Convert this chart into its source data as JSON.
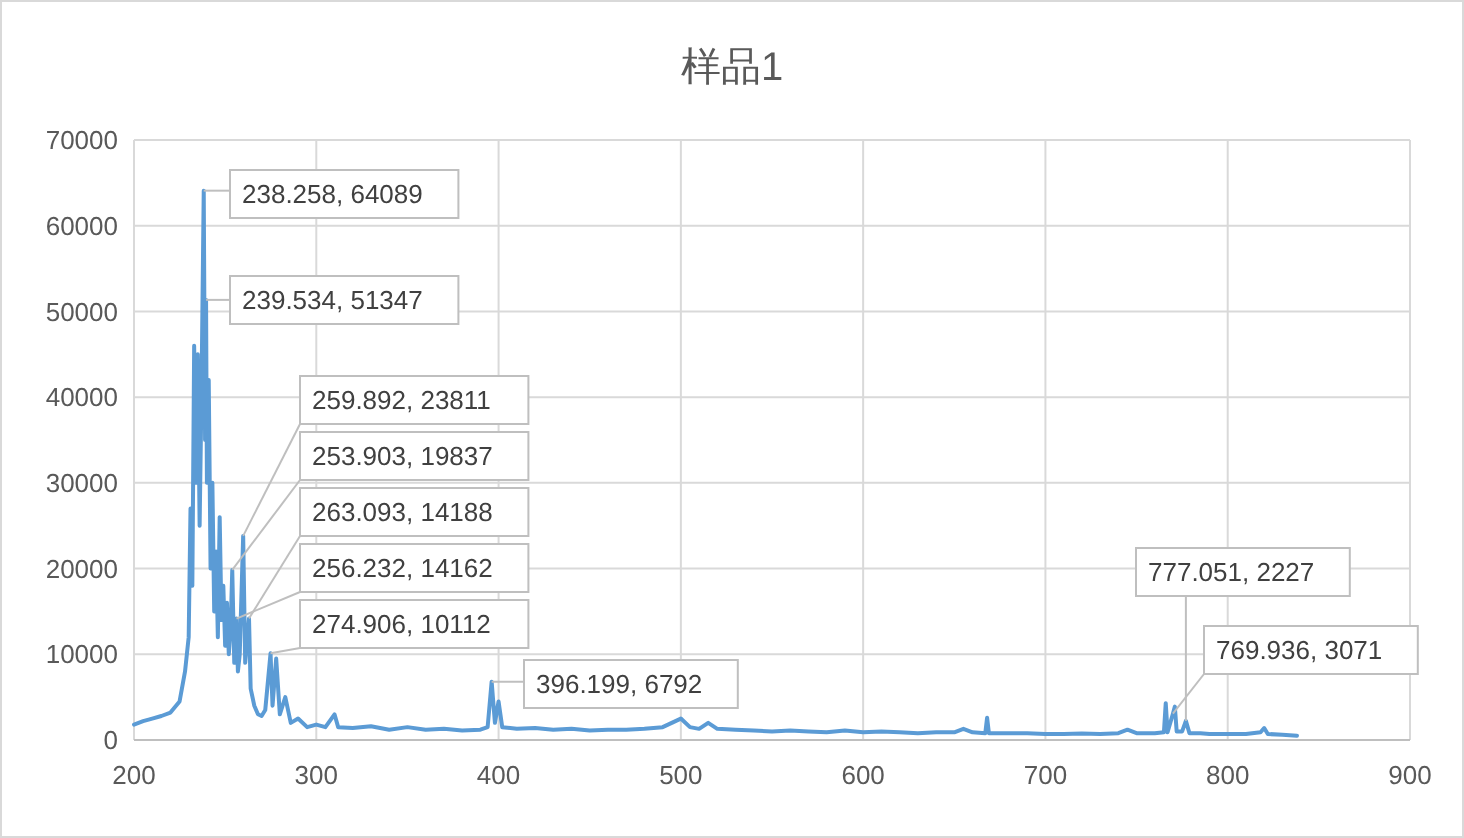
{
  "chart_data": {
    "type": "line",
    "title": "样品1",
    "series": [
      {
        "color": "#5b9bd5",
        "x": [
          200,
          205,
          210,
          215,
          220,
          225,
          228,
          230,
          231,
          232,
          233,
          234,
          235,
          236,
          237,
          238.258,
          239,
          239.534,
          240,
          241,
          242,
          243,
          244,
          245,
          246,
          247,
          248,
          249,
          250,
          251,
          252,
          253,
          253.903,
          255,
          256.232,
          257,
          258,
          259.892,
          261,
          263.093,
          264,
          266,
          268,
          270,
          272,
          274.906,
          276,
          278,
          280,
          283,
          286,
          290,
          295,
          300,
          305,
          310,
          312,
          320,
          330,
          340,
          350,
          360,
          370,
          380,
          390,
          394,
          396.199,
          398,
          400,
          402,
          410,
          420,
          430,
          440,
          450,
          460,
          470,
          480,
          490,
          500,
          505,
          510,
          515,
          520,
          530,
          540,
          550,
          560,
          570,
          580,
          590,
          600,
          610,
          620,
          630,
          640,
          650,
          655,
          660,
          667,
          668,
          669,
          680,
          690,
          700,
          710,
          720,
          730,
          740,
          745,
          750,
          760,
          765,
          766,
          767,
          769.936,
          771,
          772,
          775,
          777.051,
          779,
          785,
          790,
          800,
          810,
          818,
          820,
          822,
          830,
          838
        ],
        "values": [
          1800,
          2200,
          2500,
          2800,
          3200,
          4500,
          8000,
          12000,
          27000,
          18000,
          46000,
          30000,
          45000,
          25000,
          40000,
          64089,
          35000,
          51347,
          30000,
          42000,
          20000,
          30000,
          15000,
          22000,
          12000,
          26000,
          14000,
          18000,
          11000,
          16000,
          10000,
          13000,
          19837,
          9000,
          14162,
          8000,
          10000,
          23811,
          9000,
          14188,
          6000,
          4000,
          3000,
          2800,
          3500,
          10112,
          4000,
          9500,
          3000,
          5000,
          2000,
          2500,
          1500,
          1800,
          1500,
          3000,
          1500,
          1400,
          1600,
          1200,
          1500,
          1200,
          1300,
          1100,
          1200,
          1500,
          6792,
          2000,
          4500,
          1500,
          1300,
          1400,
          1200,
          1300,
          1100,
          1200,
          1200,
          1300,
          1500,
          2500,
          1500,
          1300,
          2000,
          1300,
          1200,
          1100,
          1000,
          1100,
          1000,
          900,
          1100,
          900,
          1000,
          900,
          800,
          900,
          900,
          1300,
          900,
          800,
          2600,
          800,
          800,
          800,
          700,
          700,
          750,
          700,
          800,
          1200,
          800,
          800,
          900,
          4300,
          900,
          3071,
          3900,
          1000,
          1000,
          2227,
          800,
          800,
          700,
          700,
          700,
          900,
          1400,
          700,
          600,
          500
        ]
      }
    ],
    "xlim": [
      200,
      900
    ],
    "xticks": [
      200,
      300,
      400,
      500,
      600,
      700,
      800,
      900
    ],
    "ylim": [
      0,
      70000
    ],
    "yticks": [
      0,
      10000,
      20000,
      30000,
      40000,
      50000,
      60000,
      70000
    ],
    "grid": true,
    "annotations": [
      {
        "text": "238.258, 64089",
        "x": 238.258,
        "y": 64089
      },
      {
        "text": "239.534, 51347",
        "x": 239.534,
        "y": 51347
      },
      {
        "text": "259.892, 23811",
        "x": 259.892,
        "y": 23811
      },
      {
        "text": "253.903, 19837",
        "x": 253.903,
        "y": 19837
      },
      {
        "text": "263.093, 14188",
        "x": 263.093,
        "y": 14188
      },
      {
        "text": "256.232, 14162",
        "x": 256.232,
        "y": 14162
      },
      {
        "text": "274.906, 10112",
        "x": 274.906,
        "y": 10112
      },
      {
        "text": "396.199, 6792",
        "x": 396.199,
        "y": 6792
      },
      {
        "text": "777.051, 2227",
        "x": 777.051,
        "y": 2227
      },
      {
        "text": "769.936, 3071",
        "x": 769.936,
        "y": 3071
      }
    ]
  }
}
